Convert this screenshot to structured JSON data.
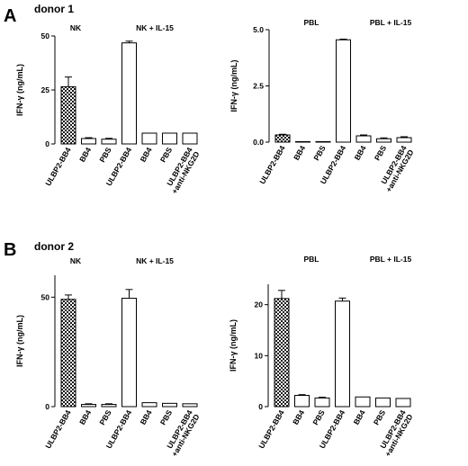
{
  "panels": {
    "A": {
      "letter": "A",
      "donor": "donor 1"
    },
    "B": {
      "letter": "B",
      "donor": "donor 2"
    }
  },
  "colors": {
    "bar_fill_plain": "#ffffff",
    "bar_stroke": "#000000",
    "pattern": "checkered"
  },
  "chart_data": [
    {
      "type": "bar",
      "panel": "A",
      "ylabel": "IFN-γ (ng/mL)",
      "ylim": [
        0,
        50
      ],
      "yticks": [
        "0",
        "25",
        "50"
      ],
      "groups": [
        "NK",
        "NK + IL-15"
      ],
      "categories": [
        "ULBP2-BB4",
        "BB4",
        "PBS",
        "ULBP2-BB4",
        "BB4",
        "PBS",
        "ULBP2-BB4\n+anti-NKG2D"
      ],
      "values": [
        26.5,
        2.5,
        2.2,
        46.8,
        5.0,
        5.0,
        5.0
      ],
      "errors": [
        4.5,
        0.4,
        0.4,
        0.8,
        0,
        0,
        0
      ],
      "patterned": [
        true,
        false,
        false,
        false,
        false,
        false,
        false
      ]
    },
    {
      "type": "bar",
      "panel": "A",
      "ylabel": "IFN-γ (ng/mL)",
      "ylim": [
        0,
        5
      ],
      "yticks": [
        "0.0",
        "2.5",
        "5.0"
      ],
      "groups": [
        "PBL",
        "PBL + IL-15"
      ],
      "categories": [
        "ULBP2-BB4",
        "BB4",
        "PBS",
        "ULBP2-BB4",
        "BB4",
        "PBS",
        "ULBP2-BB4\n+anti-NKG2D"
      ],
      "values": [
        0.32,
        0.02,
        0.02,
        4.55,
        0.28,
        0.15,
        0.2
      ],
      "errors": [
        0.03,
        0,
        0,
        0.03,
        0.04,
        0.04,
        0.04
      ],
      "patterned": [
        true,
        false,
        false,
        false,
        false,
        false,
        false
      ]
    },
    {
      "type": "bar",
      "panel": "B",
      "ylabel": "IFN-γ (ng/mL)",
      "ylim": [
        0,
        60
      ],
      "yticks": [
        "0",
        "50"
      ],
      "groups": [
        "NK",
        "NK + IL-15"
      ],
      "categories": [
        "ULBP2-BB4",
        "BB4",
        "PBS",
        "ULBP2-BB4",
        "BB4",
        "PBS",
        "ULBP2-BB4\n+anti-NKG2D"
      ],
      "values": [
        49,
        1,
        1,
        49.5,
        1.8,
        1.5,
        1.3
      ],
      "errors": [
        2,
        0.3,
        0.3,
        4,
        0,
        0,
        0
      ],
      "patterned": [
        true,
        false,
        false,
        false,
        false,
        false,
        false
      ]
    },
    {
      "type": "bar",
      "panel": "B",
      "ylabel": "IFN-γ (ng/mL)",
      "ylim": [
        0,
        24
      ],
      "yticks": [
        "0",
        "10",
        "20"
      ],
      "groups": [
        "PBL",
        "PBL + IL-15"
      ],
      "categories": [
        "ULBP2-BB4",
        "BB4",
        "PBS",
        "ULBP2-BB4",
        "BB4",
        "PBS",
        "ULBP2-BB4\n+anti-NKG2D"
      ],
      "values": [
        21.2,
        2.2,
        1.7,
        20.7,
        1.9,
        1.7,
        1.6
      ],
      "errors": [
        1.6,
        0.15,
        0.15,
        0.6,
        0,
        0,
        0
      ],
      "patterned": [
        true,
        false,
        false,
        false,
        false,
        false,
        false
      ]
    }
  ]
}
